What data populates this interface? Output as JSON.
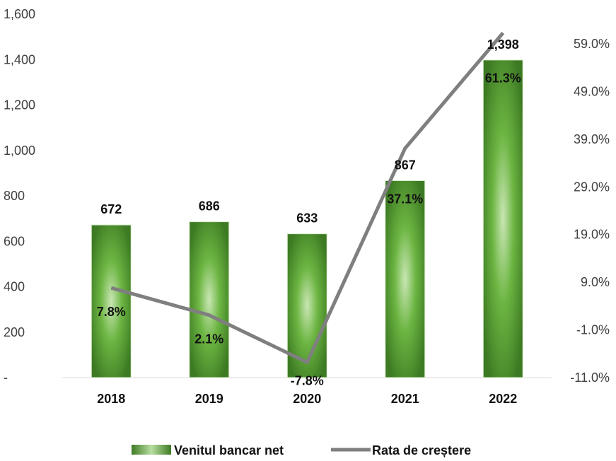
{
  "chart_data": {
    "type": "bar",
    "categories": [
      "2018",
      "2019",
      "2020",
      "2021",
      "2022"
    ],
    "series": [
      {
        "name": "Venitul bancar net",
        "kind": "bar",
        "axis": "left",
        "values": [
          672,
          686,
          633,
          867,
          1398
        ],
        "labels": [
          "672",
          "686",
          "633",
          "867",
          "1,398"
        ],
        "color": "#5aa03a"
      },
      {
        "name": "Rata de creștere",
        "kind": "line",
        "axis": "right",
        "values": [
          7.8,
          2.1,
          -7.8,
          37.1,
          61.3
        ],
        "labels": [
          "7.8%",
          "2.1%",
          "-7.8%",
          "37.1%",
          "61.3%"
        ],
        "color": "#7f7f7f"
      }
    ],
    "y_left": {
      "range": [
        0,
        1600
      ],
      "ticks": [
        0,
        200,
        400,
        600,
        800,
        1000,
        1200,
        1400,
        1600
      ],
      "tick_labels": [
        "-",
        "200",
        "400",
        "600",
        "800",
        "1,000",
        "1,200",
        "1,400",
        "1,600"
      ]
    },
    "y_right": {
      "range": [
        -11,
        69
      ],
      "ticks": [
        -11,
        -1,
        9,
        19,
        29,
        39,
        49,
        59
      ],
      "tick_labels": [
        "-11.0%",
        "-1.0%",
        "9.0%",
        "19.0%",
        "29.0%",
        "39.0%",
        "49.0%",
        "59.0%"
      ]
    },
    "legend": {
      "position": "bottom",
      "items": [
        "Venitul bancar net",
        "Rata de creștere"
      ]
    },
    "grid": false
  }
}
